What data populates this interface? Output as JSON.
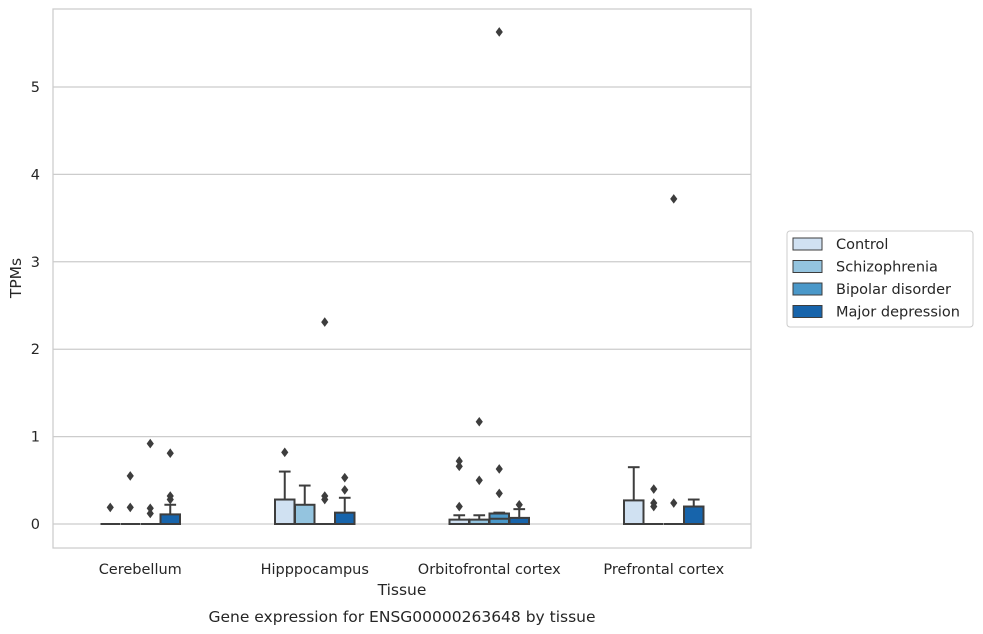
{
  "caption": "Gene expression for ENSG00000263648 by tissue",
  "chart_data": {
    "type": "box",
    "xlabel": "Tissue",
    "ylabel": "TPMs",
    "ylim": [
      -0.27,
      5.9
    ],
    "yticks": [
      0,
      1,
      2,
      3,
      4,
      5
    ],
    "grid": "horizontal",
    "legend_position": "right",
    "categories": [
      "Cerebellum",
      "Hipppocampus",
      "Orbitofrontal cortex",
      "Prefrontal cortex"
    ],
    "series": [
      {
        "name": "Control",
        "color": "#d0e1f2"
      },
      {
        "name": "Schizophrenia",
        "color": "#94c4df"
      },
      {
        "name": "Bipolar disorder",
        "color": "#4a98c9"
      },
      {
        "name": "Major depression",
        "color": "#1764ab"
      }
    ],
    "boxes": [
      [
        {
          "q1": 0,
          "median": 0,
          "q3": 0,
          "whisker_low": 0,
          "whisker_high": 0,
          "outliers": [
            0.19
          ]
        },
        {
          "q1": 0,
          "median": 0,
          "q3": 0,
          "whisker_low": 0,
          "whisker_high": 0,
          "outliers": [
            0.55,
            0.19
          ]
        },
        {
          "q1": 0,
          "median": 0,
          "q3": 0,
          "whisker_low": 0,
          "whisker_high": 0,
          "outliers": [
            0.92,
            0.18,
            0.12
          ]
        },
        {
          "q1": 0,
          "median": 0,
          "q3": 0.11,
          "whisker_low": 0,
          "whisker_high": 0.22,
          "outliers": [
            0.81,
            0.32,
            0.28
          ]
        }
      ],
      [
        {
          "q1": 0,
          "median": 0,
          "q3": 0.28,
          "whisker_low": 0,
          "whisker_high": 0.6,
          "outliers": [
            0.82
          ]
        },
        {
          "q1": 0,
          "median": 0,
          "q3": 0.22,
          "whisker_low": 0,
          "whisker_high": 0.44,
          "outliers": []
        },
        {
          "q1": 0,
          "median": 0,
          "q3": 0,
          "whisker_low": 0,
          "whisker_high": 0,
          "outliers": [
            2.31,
            0.32,
            0.28
          ]
        },
        {
          "q1": 0,
          "median": 0,
          "q3": 0.13,
          "whisker_low": 0,
          "whisker_high": 0.3,
          "outliers": [
            0.53,
            0.39
          ]
        }
      ],
      [
        {
          "q1": 0,
          "median": 0,
          "q3": 0.05,
          "whisker_low": 0,
          "whisker_high": 0.1,
          "outliers": [
            0.72,
            0.66,
            0.2
          ]
        },
        {
          "q1": 0,
          "median": 0,
          "q3": 0.05,
          "whisker_low": 0,
          "whisker_high": 0.1,
          "outliers": [
            1.17,
            0.5
          ]
        },
        {
          "q1": 0,
          "median": 0.06,
          "q3": 0.12,
          "whisker_low": 0,
          "whisker_high": 0.13,
          "outliers": [
            5.63,
            0.63,
            0.35
          ]
        },
        {
          "q1": 0,
          "median": 0,
          "q3": 0.07,
          "whisker_low": 0,
          "whisker_high": 0.17,
          "outliers": [
            0.22
          ]
        }
      ],
      [
        {
          "q1": 0,
          "median": 0,
          "q3": 0.27,
          "whisker_low": 0,
          "whisker_high": 0.65,
          "outliers": []
        },
        {
          "q1": 0,
          "median": 0,
          "q3": 0,
          "whisker_low": 0,
          "whisker_high": 0,
          "outliers": [
            0.4,
            0.24,
            0.2
          ]
        },
        {
          "q1": 0,
          "median": 0,
          "q3": 0,
          "whisker_low": 0,
          "whisker_high": 0,
          "outliers": [
            3.72,
            0.24
          ]
        },
        {
          "q1": 0,
          "median": 0,
          "q3": 0.2,
          "whisker_low": 0,
          "whisker_high": 0.28,
          "outliers": []
        }
      ]
    ]
  }
}
